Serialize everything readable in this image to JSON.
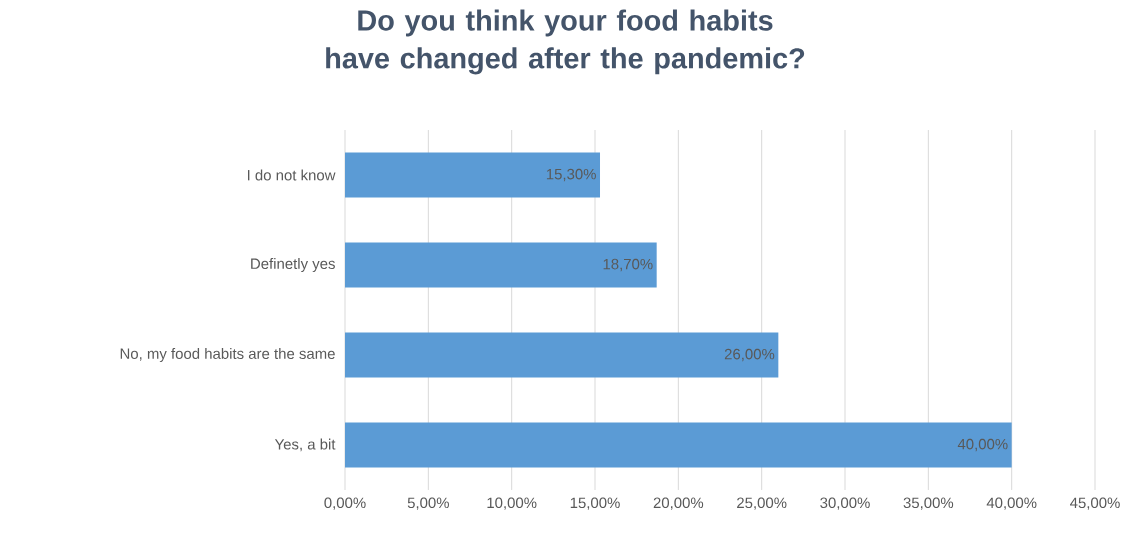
{
  "chart_data": {
    "type": "bar",
    "orientation": "horizontal",
    "title": "Do you think your food habits have changed after the pandemic?",
    "categories": [
      "I do not know",
      "Definetly yes",
      "No, my food habits are the same",
      "Yes, a bit"
    ],
    "values": [
      15.3,
      18.7,
      26,
      40
    ],
    "value_labels": [
      "15,30%",
      "18,70%",
      "26,00%",
      "40,00%"
    ],
    "color": "#5b9bd5",
    "xlim": [
      0,
      45
    ],
    "xticks": [
      {
        "value": 0,
        "label": "0,00%"
      },
      {
        "value": 5,
        "label": "5,00%"
      },
      {
        "value": 10,
        "label": "10,00%"
      },
      {
        "value": 15,
        "label": "15,00%"
      },
      {
        "value": 20,
        "label": "20,00%"
      },
      {
        "value": 25,
        "label": "25,00%"
      },
      {
        "value": 30,
        "label": "30,00%"
      },
      {
        "value": 35,
        "label": "35,00%"
      },
      {
        "value": 40,
        "label": "40,00%"
      },
      {
        "value": 45,
        "label": "45,00%"
      }
    ],
    "grid": "x"
  }
}
